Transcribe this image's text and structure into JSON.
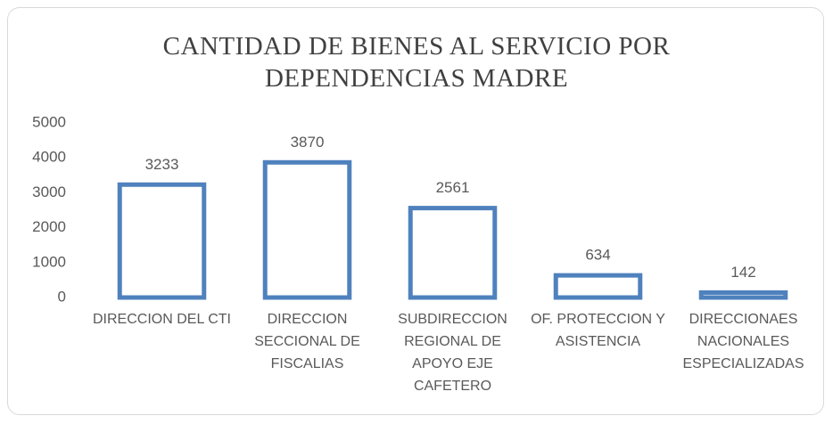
{
  "chart_data": {
    "type": "bar",
    "title": "CANTIDAD DE BIENES AL SERVICIO POR DEPENDENCIAS MADRE",
    "categories": [
      "DIRECCION DEL CTI",
      "DIRECCION SECCIONAL DE FISCALIAS",
      "SUBDIRECCION REGIONAL DE APOYO EJE CAFETERO",
      "OF. PROTECCION Y ASISTENCIA",
      "DIRECCIONAES NACIONALES ESPECIALIZADAS"
    ],
    "values": [
      3233,
      3870,
      2561,
      634,
      142
    ],
    "color": "#4f81bd",
    "ylim": [
      0,
      5000
    ],
    "yticks": [
      0,
      1000,
      2000,
      3000,
      4000,
      5000
    ],
    "grid": false
  }
}
